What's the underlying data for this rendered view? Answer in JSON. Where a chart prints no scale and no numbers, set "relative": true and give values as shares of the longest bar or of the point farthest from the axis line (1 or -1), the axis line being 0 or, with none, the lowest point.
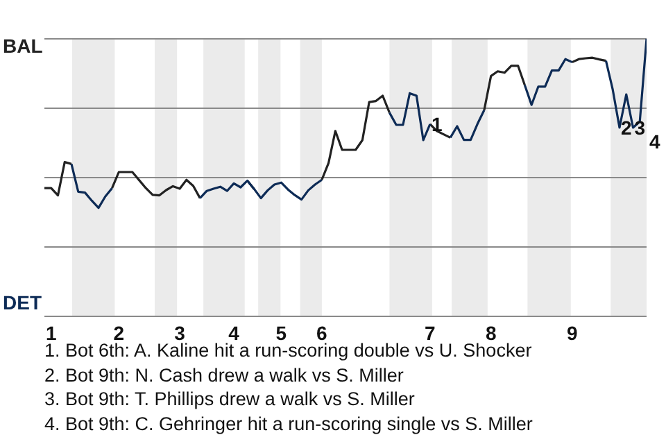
{
  "chart_data": {
    "type": "line",
    "relative": true,
    "categories": [
      null,
      "1",
      null,
      null,
      null,
      null,
      null,
      null,
      null,
      null,
      null,
      "2",
      null,
      null,
      null,
      null,
      null,
      null,
      null,
      null,
      "3",
      null,
      null,
      null,
      null,
      null,
      null,
      null,
      "4",
      null,
      null,
      null,
      null,
      null,
      null,
      "5",
      null,
      null,
      null,
      null,
      null,
      "6",
      null,
      null,
      null,
      null,
      null,
      null,
      null,
      null,
      null,
      null,
      null,
      null,
      null,
      null,
      null,
      "7",
      null,
      null,
      null,
      null,
      null,
      null,
      null,
      null,
      "8",
      null,
      null,
      null,
      null,
      null,
      null,
      null,
      null,
      null,
      null,
      null,
      "9",
      null,
      null,
      null,
      null,
      null,
      null,
      null,
      null,
      null,
      null,
      null
    ],
    "grid": "y",
    "marker": "none",
    "series": [
      {
        "color": "#222222",
        "values": [
          0.462,
          0.462,
          0.436,
          0.556,
          0.549,
          null,
          null,
          null,
          null,
          null,
          0.462,
          0.52,
          0.52,
          0.52,
          0.491,
          0.462,
          0.438,
          0.436,
          0.455,
          0.469,
          0.46,
          0.492,
          0.47,
          0.426,
          null,
          null,
          null,
          null,
          null,
          null,
          0.489,
          0.459,
          null,
          null,
          null,
          null,
          null,
          null,
          null,
          null,
          null,
          0.492,
          0.553,
          0.668,
          0.6,
          0.6,
          0.6,
          0.635,
          0.772,
          0.776,
          0.795,
          0.734,
          null,
          null,
          null,
          null,
          null,
          0.693,
          0.668,
          0.656,
          0.644,
          null,
          null,
          null,
          null,
          0.743,
          0.866,
          0.883,
          0.878,
          0.903,
          0.903,
          0.833,
          null,
          null,
          null,
          null,
          null,
          null,
          0.916,
          0.927,
          0.93,
          0.932,
          0.926,
          0.921,
          null,
          null,
          null,
          null,
          null,
          null
        ]
      },
      {
        "color": "#0d2b56",
        "values": [
          null,
          null,
          null,
          null,
          0.549,
          0.449,
          0.446,
          0.417,
          0.391,
          0.432,
          0.462,
          null,
          null,
          null,
          null,
          null,
          null,
          null,
          null,
          null,
          null,
          null,
          null,
          0.426,
          0.452,
          0.46,
          0.467,
          0.452,
          0.479,
          0.465,
          0.489,
          0.459,
          0.426,
          0.454,
          0.475,
          0.482,
          0.457,
          0.437,
          0.421,
          0.454,
          0.475,
          0.492,
          null,
          null,
          null,
          null,
          null,
          null,
          null,
          null,
          null,
          0.734,
          0.69,
          0.69,
          0.804,
          0.795,
          0.635,
          0.693,
          null,
          null,
          0.644,
          0.685,
          0.636,
          0.636,
          0.693,
          0.743,
          null,
          null,
          null,
          null,
          null,
          0.833,
          0.762,
          0.828,
          0.828,
          0.886,
          0.886,
          0.927,
          0.916,
          null,
          null,
          null,
          null,
          0.921,
          0.817,
          0.68,
          0.8,
          0.68,
          0.702,
          1
        ]
      }
    ],
    "annotations": [
      "BAL",
      "DET",
      {
        "text": "1",
        "y": 0.693
      },
      {
        "text": "2",
        "y": 0.68
      },
      {
        "text": "3",
        "y": 0.68
      },
      "4",
      "1. Bot 6th: A. Kaline hit a run-scoring double vs U. Shocker",
      "2. Bot 9th: N. Cash drew a walk vs S. Miller",
      "3. Bot 9th: T. Phillips drew a walk vs S. Miller",
      "4. Bot 9th: C. Gehringer hit a run-scoring single vs S. Miller"
    ]
  }
}
